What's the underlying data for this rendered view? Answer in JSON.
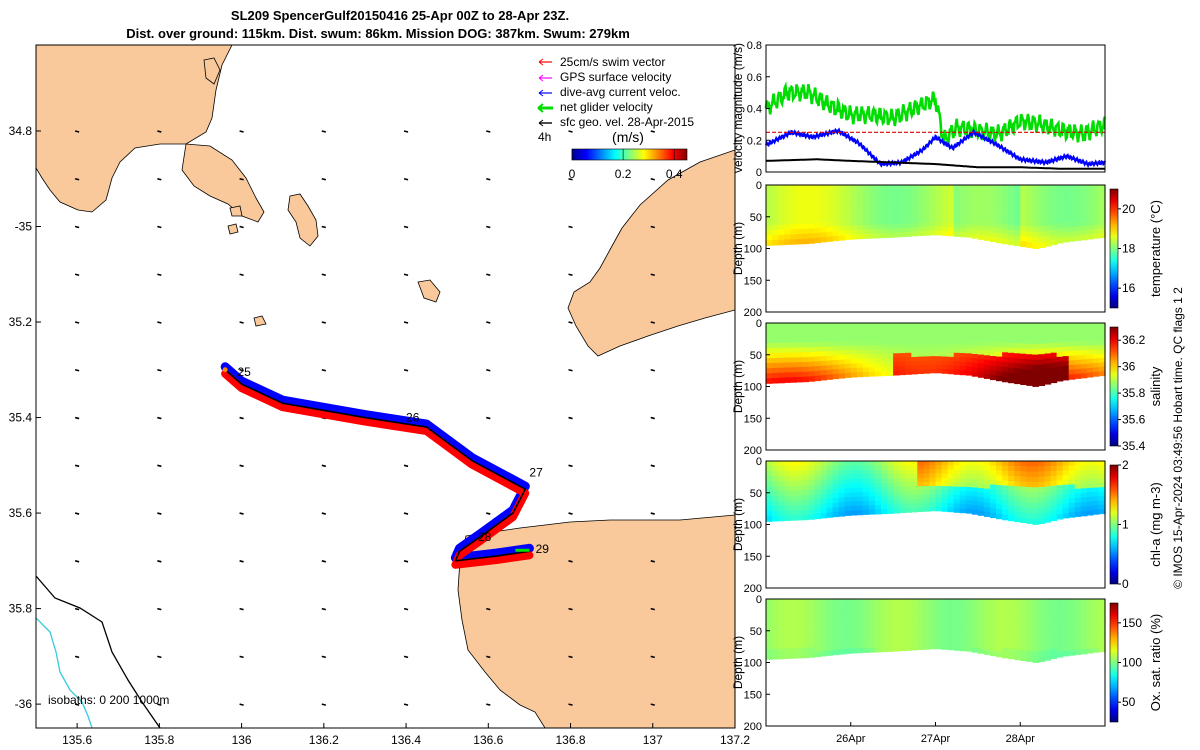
{
  "colors": {
    "land": "#f9c89b",
    "swim": "#ff0000",
    "gps": "#ff00ff",
    "dive": "#0000ff",
    "net": "#00dd00",
    "geo": "#000000",
    "iso200": "#000000",
    "iso1000": "#33ccdd"
  },
  "chart_data": {
    "title_line1": "SL209 SpencerGulf20150416 25-Apr 00Z to 28-Apr 23Z.",
    "title_line2": "Dist. over ground: 115km. Dist. swum: 86km. Mission DOG: 387km. Swum: 279km",
    "copyright": "© IMOS 15-Apr-2024 03:49:56 Hobart time. QC flags 1  2",
    "map": {
      "type": "map",
      "xlim": [
        135.5,
        137.2
      ],
      "ylim": [
        -36.05,
        -34.62
      ],
      "xticks": [
        135.6,
        135.8,
        136,
        136.2,
        136.4,
        136.6,
        136.8,
        137,
        137.2
      ],
      "xtick_labels": [
        "135.6",
        "135.8",
        "136",
        "136.2",
        "136.4",
        "136.6",
        "136.8",
        "137",
        "137.2"
      ],
      "yticks": [
        -34.8,
        -35.0,
        -35.2,
        -35.4,
        -35.6,
        -35.8,
        -36.0
      ],
      "ytick_labels": [
        "34.8",
        "-35",
        "35.2",
        "35.4",
        "35.6",
        "35.8",
        "-36"
      ],
      "legend": [
        "25cm/s swim vector",
        "GPS surface velocity",
        "dive-avg current veloc.",
        "net glider velocity",
        "sfc geo. vel. 28-Apr-2015"
      ],
      "legend_extra": "4h",
      "colorbar_title": "(m/s)",
      "colorbar_ticks": [
        "0",
        "0.2",
        "0.4"
      ],
      "colorbar_range": [
        0,
        0.45
      ],
      "isobath_label": "isobaths: 0   200  1000m",
      "track": [
        [
          135.96,
          -35.3
        ],
        [
          136.0,
          -35.33
        ],
        [
          136.1,
          -35.37
        ],
        [
          136.3,
          -35.4
        ],
        [
          136.45,
          -35.42
        ],
        [
          136.56,
          -35.49
        ],
        [
          136.69,
          -35.55
        ],
        [
          136.66,
          -35.6
        ],
        [
          136.58,
          -35.65
        ],
        [
          136.53,
          -35.68
        ],
        [
          136.52,
          -35.7
        ],
        [
          136.62,
          -35.69
        ],
        [
          136.7,
          -35.68
        ]
      ],
      "day_labels": [
        {
          "text": "25",
          "lon": 135.99,
          "lat": -35.305
        },
        {
          "text": "26",
          "lon": 136.4,
          "lat": -35.4
        },
        {
          "text": "27",
          "lon": 136.7,
          "lat": -35.515
        },
        {
          "text": "28",
          "lon": 136.575,
          "lat": -35.65
        },
        {
          "text": "29",
          "lon": 136.715,
          "lat": -35.675
        }
      ]
    },
    "velocity": {
      "type": "line",
      "ylabel": "velocity magnitude (m/s)",
      "ylim": [
        0,
        0.8
      ],
      "yticks": [
        0,
        0.2,
        0.4,
        0.6,
        0.8
      ],
      "ytick_labels": [
        "0",
        "0.2",
        "0.4",
        "0.6",
        "0.8"
      ],
      "xlim": [
        0,
        4
      ],
      "series": [
        {
          "name": "net glider velocity",
          "color": "#00dd00",
          "x": [
            0,
            0.25,
            0.5,
            0.75,
            1.0,
            1.25,
            1.5,
            1.75,
            2.0,
            2.1,
            2.25,
            2.5,
            2.75,
            3.0,
            3.25,
            3.5,
            3.75,
            4.0
          ],
          "values": [
            0.4,
            0.5,
            0.5,
            0.42,
            0.36,
            0.36,
            0.34,
            0.4,
            0.46,
            0.2,
            0.28,
            0.26,
            0.24,
            0.32,
            0.3,
            0.26,
            0.24,
            0.3
          ]
        },
        {
          "name": "dive-avg current veloc.",
          "color": "#0000ff",
          "x": [
            0,
            0.3,
            0.55,
            0.85,
            1.1,
            1.35,
            1.6,
            1.85,
            2.0,
            2.2,
            2.45,
            2.7,
            3.0,
            3.3,
            3.55,
            3.8,
            4.0
          ],
          "values": [
            0.17,
            0.25,
            0.22,
            0.26,
            0.18,
            0.05,
            0.06,
            0.14,
            0.22,
            0.15,
            0.25,
            0.18,
            0.08,
            0.06,
            0.1,
            0.05,
            0.06
          ]
        },
        {
          "name": "25cm/s swim vector",
          "color": "#dd0000",
          "x": [
            0,
            4
          ],
          "values": [
            0.25,
            0.25
          ]
        },
        {
          "name": "sfc geo. vel.",
          "color": "#000000",
          "x": [
            0,
            0.6,
            1.0,
            1.5,
            2.0,
            2.5,
            3.0,
            3.5,
            4.0
          ],
          "values": [
            0.07,
            0.08,
            0.07,
            0.06,
            0.05,
            0.03,
            0.03,
            0.02,
            0.02
          ]
        }
      ]
    },
    "sections": [
      {
        "name": "temperature",
        "ylabel": "Depth (m)",
        "cbar_label": "temperature (°C)",
        "cbar_ticks": [
          16,
          18,
          20
        ],
        "cbar_tick_labels": [
          "16",
          "18",
          "20"
        ],
        "crange": [
          15,
          21
        ]
      },
      {
        "name": "salinity",
        "ylabel": "Depth (m)",
        "cbar_label": "salinity",
        "cbar_ticks": [
          35.4,
          35.6,
          35.8,
          36,
          36.2
        ],
        "cbar_tick_labels": [
          "35.4",
          "35.6",
          "35.8",
          "36",
          "36.2"
        ],
        "crange": [
          35.4,
          36.3
        ]
      },
      {
        "name": "chl-a",
        "ylabel": "Depth (m)",
        "cbar_label": "chl-a (mg m-3)",
        "cbar_ticks": [
          0,
          1,
          2
        ],
        "cbar_tick_labels": [
          "0",
          "1",
          "2"
        ],
        "crange": [
          0,
          2
        ]
      },
      {
        "name": "oxygen",
        "ylabel": "Depth (m)",
        "cbar_label": "Ox. sat. ratio (%)",
        "cbar_ticks": [
          50,
          100,
          150
        ],
        "cbar_tick_labels": [
          "50",
          "100",
          "150"
        ],
        "crange": [
          25,
          175
        ]
      }
    ],
    "depth_ylim": [
      0,
      200
    ],
    "depth_ticks": [
      "0",
      "50",
      "100",
      "150",
      "200"
    ],
    "bottom_depth": {
      "x": [
        0,
        0.5,
        1.0,
        1.5,
        2.0,
        2.4,
        2.8,
        3.2,
        3.5,
        4.0
      ],
      "depth": [
        95,
        92,
        85,
        82,
        78,
        82,
        92,
        100,
        90,
        82
      ]
    },
    "time_ticks": [
      1,
      2,
      3
    ],
    "time_tick_labels": [
      "26Apr",
      "27Apr",
      "28Apr"
    ]
  }
}
